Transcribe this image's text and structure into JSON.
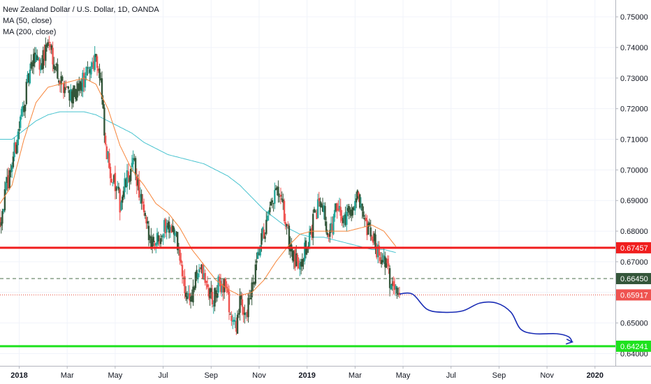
{
  "chart_data": {
    "type": "candlestick",
    "title": "New Zealand Dollar / U.S. Dollar, 1D, OANDA",
    "indicators": [
      {
        "label": "MA (50, close)",
        "color": "#f7853a"
      },
      {
        "label": "MA (200, close)",
        "color": "#48c3cf"
      }
    ],
    "ylim": [
      0.636,
      0.7555
    ],
    "y_ticks": [
      {
        "value": 0.64,
        "label": "0.64000"
      },
      {
        "value": 0.65,
        "label": "0.65000"
      },
      {
        "value": 0.66,
        "label": "0.66000"
      },
      {
        "value": 0.67,
        "label": "0.67000"
      },
      {
        "value": 0.68,
        "label": "0.68000"
      },
      {
        "value": 0.69,
        "label": "0.69000"
      },
      {
        "value": 0.7,
        "label": "0.70000"
      },
      {
        "value": 0.71,
        "label": "0.71000"
      },
      {
        "value": 0.72,
        "label": "0.72000"
      },
      {
        "value": 0.73,
        "label": "0.73000"
      },
      {
        "value": 0.74,
        "label": "0.74000"
      },
      {
        "value": 0.75,
        "label": "0.75000"
      }
    ],
    "x_ticks": [
      {
        "label": "2018",
        "t": 1.3,
        "bold": true
      },
      {
        "label": "Mar",
        "t": 3.3
      },
      {
        "label": "May",
        "t": 5.3
      },
      {
        "label": "Jul",
        "t": 7.3
      },
      {
        "label": "Sep",
        "t": 9.3
      },
      {
        "label": "Nov",
        "t": 11.3
      },
      {
        "label": "2019",
        "t": 13.3,
        "bold": true
      },
      {
        "label": "Mar",
        "t": 15.3
      },
      {
        "label": "May",
        "t": 17.3
      },
      {
        "label": "Jul",
        "t": 19.3
      },
      {
        "label": "Sep",
        "t": 21.3
      },
      {
        "label": "Nov",
        "t": 23.3
      },
      {
        "label": "2020",
        "t": 25.3,
        "bold": true
      }
    ],
    "xlim": [
      0.5,
      26.15
    ],
    "price_anchors": [
      [
        0.5,
        0.684
      ],
      [
        0.8,
        0.695
      ],
      [
        1.1,
        0.706
      ],
      [
        1.4,
        0.718
      ],
      [
        1.7,
        0.73
      ],
      [
        2.0,
        0.738
      ],
      [
        2.2,
        0.734
      ],
      [
        2.5,
        0.742
      ],
      [
        2.8,
        0.735
      ],
      [
        3.0,
        0.729
      ],
      [
        3.3,
        0.727
      ],
      [
        3.6,
        0.723
      ],
      [
        3.9,
        0.728
      ],
      [
        4.2,
        0.732
      ],
      [
        4.5,
        0.738
      ],
      [
        4.7,
        0.728
      ],
      [
        4.9,
        0.706
      ],
      [
        5.2,
        0.697
      ],
      [
        5.5,
        0.689
      ],
      [
        5.8,
        0.697
      ],
      [
        6.1,
        0.702
      ],
      [
        6.4,
        0.688
      ],
      [
        6.7,
        0.678
      ],
      [
        7.0,
        0.677
      ],
      [
        7.3,
        0.681
      ],
      [
        7.6,
        0.683
      ],
      [
        7.9,
        0.676
      ],
      [
        8.2,
        0.66
      ],
      [
        8.5,
        0.658
      ],
      [
        8.8,
        0.669
      ],
      [
        9.1,
        0.662
      ],
      [
        9.4,
        0.657
      ],
      [
        9.6,
        0.662
      ],
      [
        9.9,
        0.663
      ],
      [
        10.1,
        0.653
      ],
      [
        10.3,
        0.648
      ],
      [
        10.5,
        0.656
      ],
      [
        10.8,
        0.654
      ],
      [
        11.1,
        0.664
      ],
      [
        11.4,
        0.677
      ],
      [
        11.7,
        0.684
      ],
      [
        12.0,
        0.693
      ],
      [
        12.3,
        0.687
      ],
      [
        12.6,
        0.675
      ],
      [
        12.8,
        0.669
      ],
      [
        13.0,
        0.671
      ],
      [
        13.3,
        0.675
      ],
      [
        13.6,
        0.684
      ],
      [
        13.9,
        0.692
      ],
      [
        14.2,
        0.677
      ],
      [
        14.5,
        0.687
      ],
      [
        14.8,
        0.684
      ],
      [
        15.1,
        0.687
      ],
      [
        15.4,
        0.691
      ],
      [
        15.7,
        0.681
      ],
      [
        16.0,
        0.678
      ],
      [
        16.3,
        0.673
      ],
      [
        16.6,
        0.669
      ],
      [
        16.8,
        0.662
      ],
      [
        17.0,
        0.664
      ],
      [
        17.15,
        0.6592
      ]
    ],
    "ma50_anchors": [
      [
        0.5,
        0.689
      ],
      [
        1.0,
        0.695
      ],
      [
        1.5,
        0.71
      ],
      [
        2.0,
        0.722
      ],
      [
        2.5,
        0.727
      ],
      [
        3.0,
        0.728
      ],
      [
        3.5,
        0.729
      ],
      [
        4.0,
        0.73
      ],
      [
        4.5,
        0.728
      ],
      [
        5.0,
        0.72
      ],
      [
        5.5,
        0.708
      ],
      [
        6.0,
        0.7
      ],
      [
        6.5,
        0.695
      ],
      [
        7.0,
        0.689
      ],
      [
        7.5,
        0.686
      ],
      [
        8.0,
        0.681
      ],
      [
        8.5,
        0.674
      ],
      [
        9.0,
        0.669
      ],
      [
        9.5,
        0.664
      ],
      [
        10.0,
        0.661
      ],
      [
        10.5,
        0.659
      ],
      [
        11.0,
        0.66
      ],
      [
        11.5,
        0.664
      ],
      [
        12.0,
        0.67
      ],
      [
        12.5,
        0.675
      ],
      [
        13.0,
        0.679
      ],
      [
        13.5,
        0.68
      ],
      [
        14.0,
        0.68
      ],
      [
        14.5,
        0.68
      ],
      [
        15.0,
        0.68
      ],
      [
        15.5,
        0.681
      ],
      [
        16.0,
        0.682
      ],
      [
        16.5,
        0.68
      ],
      [
        17.0,
        0.675
      ]
    ],
    "ma200_anchors": [
      [
        0.5,
        0.71
      ],
      [
        1.0,
        0.71
      ],
      [
        1.5,
        0.713
      ],
      [
        2.0,
        0.716
      ],
      [
        2.5,
        0.718
      ],
      [
        3.0,
        0.719
      ],
      [
        3.5,
        0.719
      ],
      [
        4.0,
        0.719
      ],
      [
        4.5,
        0.718
      ],
      [
        5.0,
        0.716
      ],
      [
        5.5,
        0.714
      ],
      [
        6.0,
        0.712
      ],
      [
        6.5,
        0.709
      ],
      [
        7.0,
        0.707
      ],
      [
        7.5,
        0.705
      ],
      [
        8.0,
        0.704
      ],
      [
        8.5,
        0.703
      ],
      [
        9.0,
        0.702
      ],
      [
        9.5,
        0.7
      ],
      [
        10.0,
        0.698
      ],
      [
        10.5,
        0.695
      ],
      [
        11.0,
        0.691
      ],
      [
        11.5,
        0.687
      ],
      [
        12.0,
        0.684
      ],
      [
        12.5,
        0.681
      ],
      [
        13.0,
        0.679
      ],
      [
        13.5,
        0.678
      ],
      [
        14.0,
        0.678
      ],
      [
        14.5,
        0.677
      ],
      [
        15.0,
        0.676
      ],
      [
        15.5,
        0.675
      ],
      [
        16.0,
        0.674
      ],
      [
        16.5,
        0.674
      ],
      [
        17.0,
        0.673
      ]
    ],
    "horizontal_levels": [
      {
        "value": 0.67457,
        "label": "0.67457",
        "color": "#f01e1e",
        "style": "solid",
        "width": 3,
        "badge_bg": "#f01e1e"
      },
      {
        "value": 0.6645,
        "label": "0.66450",
        "color": "#4a6e4a",
        "style": "dashed",
        "width": 1,
        "badge_bg": "#34563a"
      },
      {
        "value": 0.65917,
        "label": "0.65917",
        "color": "#e74c3c",
        "style": "dotted",
        "width": 1,
        "badge_bg": "#ef5350"
      },
      {
        "value": 0.64241,
        "label": "0.64241",
        "color": "#1ee21e",
        "style": "solid",
        "width": 3,
        "badge_bg": "#1ee21e"
      }
    ],
    "projection_path": [
      [
        17.15,
        0.6595
      ],
      [
        17.7,
        0.6594
      ],
      [
        18.3,
        0.6545
      ],
      [
        19.0,
        0.6535
      ],
      [
        19.8,
        0.654
      ],
      [
        20.5,
        0.6565
      ],
      [
        21.2,
        0.6565
      ],
      [
        21.8,
        0.6535
      ],
      [
        22.2,
        0.648
      ],
      [
        22.8,
        0.6465
      ],
      [
        23.7,
        0.6465
      ],
      [
        24.2,
        0.6455
      ],
      [
        24.35,
        0.6438
      ]
    ],
    "projection_color": "#1a2db5",
    "bull_color": "#26a69a",
    "bear_color": "#ef5350",
    "candle_neutral_color": "#34563a"
  }
}
